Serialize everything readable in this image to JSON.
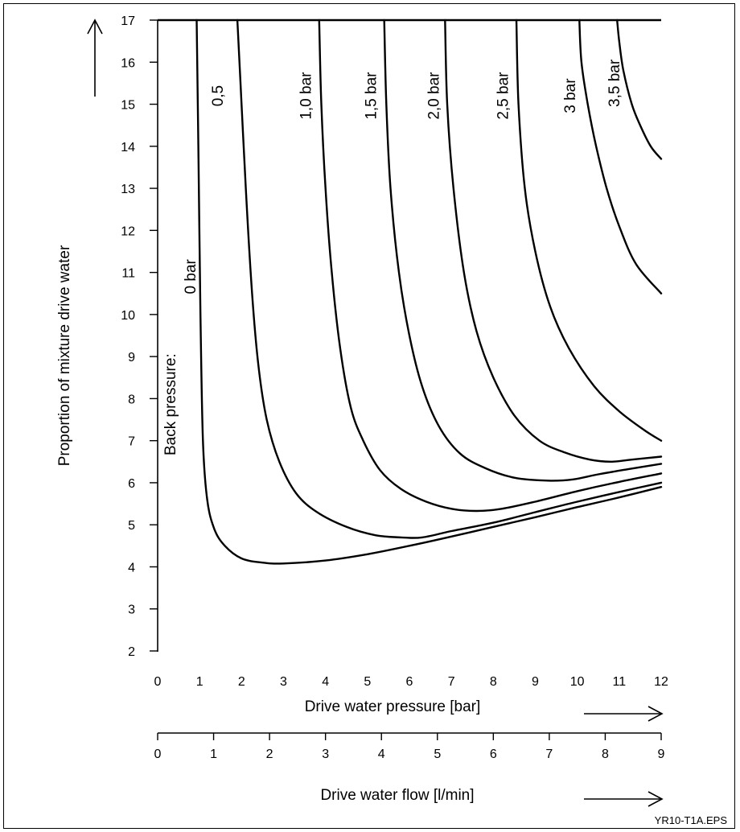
{
  "chart_data": {
    "type": "line",
    "title": "",
    "ylabel": "Proportion of mixture drive water",
    "xlabel": "Drive water pressure [bar]",
    "x2label": "Drive water flow [l/min]",
    "footer": "YR10-T1A.EPS",
    "back_pressure_prefix": "Back pressure:",
    "xlim": [
      0,
      12
    ],
    "ylim": [
      2,
      17
    ],
    "x2lim": [
      0,
      9
    ],
    "x_ticks": [
      "0",
      "1",
      "2",
      "3",
      "4",
      "5",
      "6",
      "7",
      "8",
      "9",
      "10",
      "11",
      "12"
    ],
    "y_ticks": [
      "2",
      "3",
      "4",
      "5",
      "6",
      "7",
      "8",
      "9",
      "10",
      "11",
      "12",
      "13",
      "14",
      "15",
      "16",
      "17"
    ],
    "x2_ticks": [
      "0",
      "1",
      "2",
      "3",
      "4",
      "5",
      "6",
      "7",
      "8",
      "9"
    ],
    "series": [
      {
        "name": "0 bar",
        "points": [
          [
            0.93,
            17
          ],
          [
            0.97,
            14
          ],
          [
            1.02,
            10
          ],
          [
            1.08,
            7
          ],
          [
            1.18,
            5.6
          ],
          [
            1.35,
            4.9
          ],
          [
            1.6,
            4.5
          ],
          [
            2.0,
            4.2
          ],
          [
            2.5,
            4.1
          ],
          [
            3.0,
            4.08
          ],
          [
            4,
            4.15
          ],
          [
            5,
            4.3
          ],
          [
            6,
            4.5
          ],
          [
            7,
            4.72
          ],
          [
            8,
            4.95
          ],
          [
            9,
            5.18
          ],
          [
            10,
            5.42
          ],
          [
            11,
            5.65
          ],
          [
            12,
            5.9
          ]
        ]
      },
      {
        "name": "0,5",
        "points": [
          [
            1.9,
            17
          ],
          [
            2.0,
            15
          ],
          [
            2.1,
            13
          ],
          [
            2.25,
            10.5
          ],
          [
            2.4,
            8.8
          ],
          [
            2.6,
            7.5
          ],
          [
            2.9,
            6.5
          ],
          [
            3.3,
            5.75
          ],
          [
            3.8,
            5.3
          ],
          [
            4.5,
            4.95
          ],
          [
            5.2,
            4.75
          ],
          [
            5.8,
            4.7
          ],
          [
            6.3,
            4.7
          ],
          [
            7,
            4.85
          ],
          [
            8,
            5.05
          ],
          [
            9,
            5.3
          ],
          [
            10,
            5.55
          ],
          [
            11,
            5.78
          ],
          [
            12,
            6.0
          ]
        ]
      },
      {
        "name": "1,0 bar",
        "points": [
          [
            3.85,
            17
          ],
          [
            3.9,
            15
          ],
          [
            4.0,
            13
          ],
          [
            4.15,
            11
          ],
          [
            4.35,
            9.2
          ],
          [
            4.6,
            7.8
          ],
          [
            4.9,
            7.0
          ],
          [
            5.3,
            6.3
          ],
          [
            5.8,
            5.85
          ],
          [
            6.4,
            5.55
          ],
          [
            7.0,
            5.38
          ],
          [
            7.6,
            5.33
          ],
          [
            8.2,
            5.38
          ],
          [
            9,
            5.55
          ],
          [
            10,
            5.8
          ],
          [
            11,
            6.02
          ],
          [
            12,
            6.22
          ]
        ]
      },
      {
        "name": "1,5 bar",
        "points": [
          [
            5.4,
            17
          ],
          [
            5.45,
            15
          ],
          [
            5.55,
            13
          ],
          [
            5.75,
            11
          ],
          [
            6.0,
            9.5
          ],
          [
            6.3,
            8.3
          ],
          [
            6.7,
            7.35
          ],
          [
            7.2,
            6.7
          ],
          [
            7.8,
            6.35
          ],
          [
            8.5,
            6.12
          ],
          [
            9.3,
            6.05
          ],
          [
            9.9,
            6.08
          ],
          [
            10.5,
            6.2
          ],
          [
            11.2,
            6.32
          ],
          [
            12,
            6.45
          ]
        ]
      },
      {
        "name": "2,0 bar",
        "points": [
          [
            6.85,
            17
          ],
          [
            6.9,
            15
          ],
          [
            7.05,
            13
          ],
          [
            7.3,
            11
          ],
          [
            7.6,
            9.6
          ],
          [
            8.0,
            8.5
          ],
          [
            8.5,
            7.6
          ],
          [
            9.1,
            7.0
          ],
          [
            9.7,
            6.72
          ],
          [
            10.3,
            6.55
          ],
          [
            10.8,
            6.5
          ],
          [
            11.3,
            6.55
          ],
          [
            12,
            6.62
          ]
        ]
      },
      {
        "name": "2,5 bar",
        "points": [
          [
            8.55,
            17
          ],
          [
            8.6,
            15
          ],
          [
            8.75,
            13
          ],
          [
            9.0,
            11.5
          ],
          [
            9.35,
            10.2
          ],
          [
            9.8,
            9.2
          ],
          [
            10.4,
            8.3
          ],
          [
            11.0,
            7.7
          ],
          [
            11.6,
            7.25
          ],
          [
            12,
            7.0
          ]
        ]
      },
      {
        "name": "3 bar",
        "points": [
          [
            10.05,
            17
          ],
          [
            10.1,
            16
          ],
          [
            10.25,
            15
          ],
          [
            10.45,
            14
          ],
          [
            10.7,
            13
          ],
          [
            11.0,
            12.1
          ],
          [
            11.4,
            11.2
          ],
          [
            12,
            10.5
          ]
        ]
      },
      {
        "name": "3,5 bar",
        "points": [
          [
            10.95,
            17
          ],
          [
            11.0,
            16.5
          ],
          [
            11.1,
            15.8
          ],
          [
            11.3,
            15
          ],
          [
            11.5,
            14.5
          ],
          [
            11.75,
            14.0
          ],
          [
            12,
            13.7
          ]
        ]
      }
    ],
    "curve_labels": [
      {
        "text": "0 bar",
        "series": 0
      },
      {
        "text": "0,5",
        "series": 1
      },
      {
        "text": "1,0 bar",
        "series": 2
      },
      {
        "text": "1,5 bar",
        "series": 3
      },
      {
        "text": "2,0 bar",
        "series": 4
      },
      {
        "text": "2,5 bar",
        "series": 5
      },
      {
        "text": "3 bar",
        "series": 6
      },
      {
        "text": "3,5 bar",
        "series": 7
      }
    ],
    "grid": false,
    "legend": "none"
  }
}
